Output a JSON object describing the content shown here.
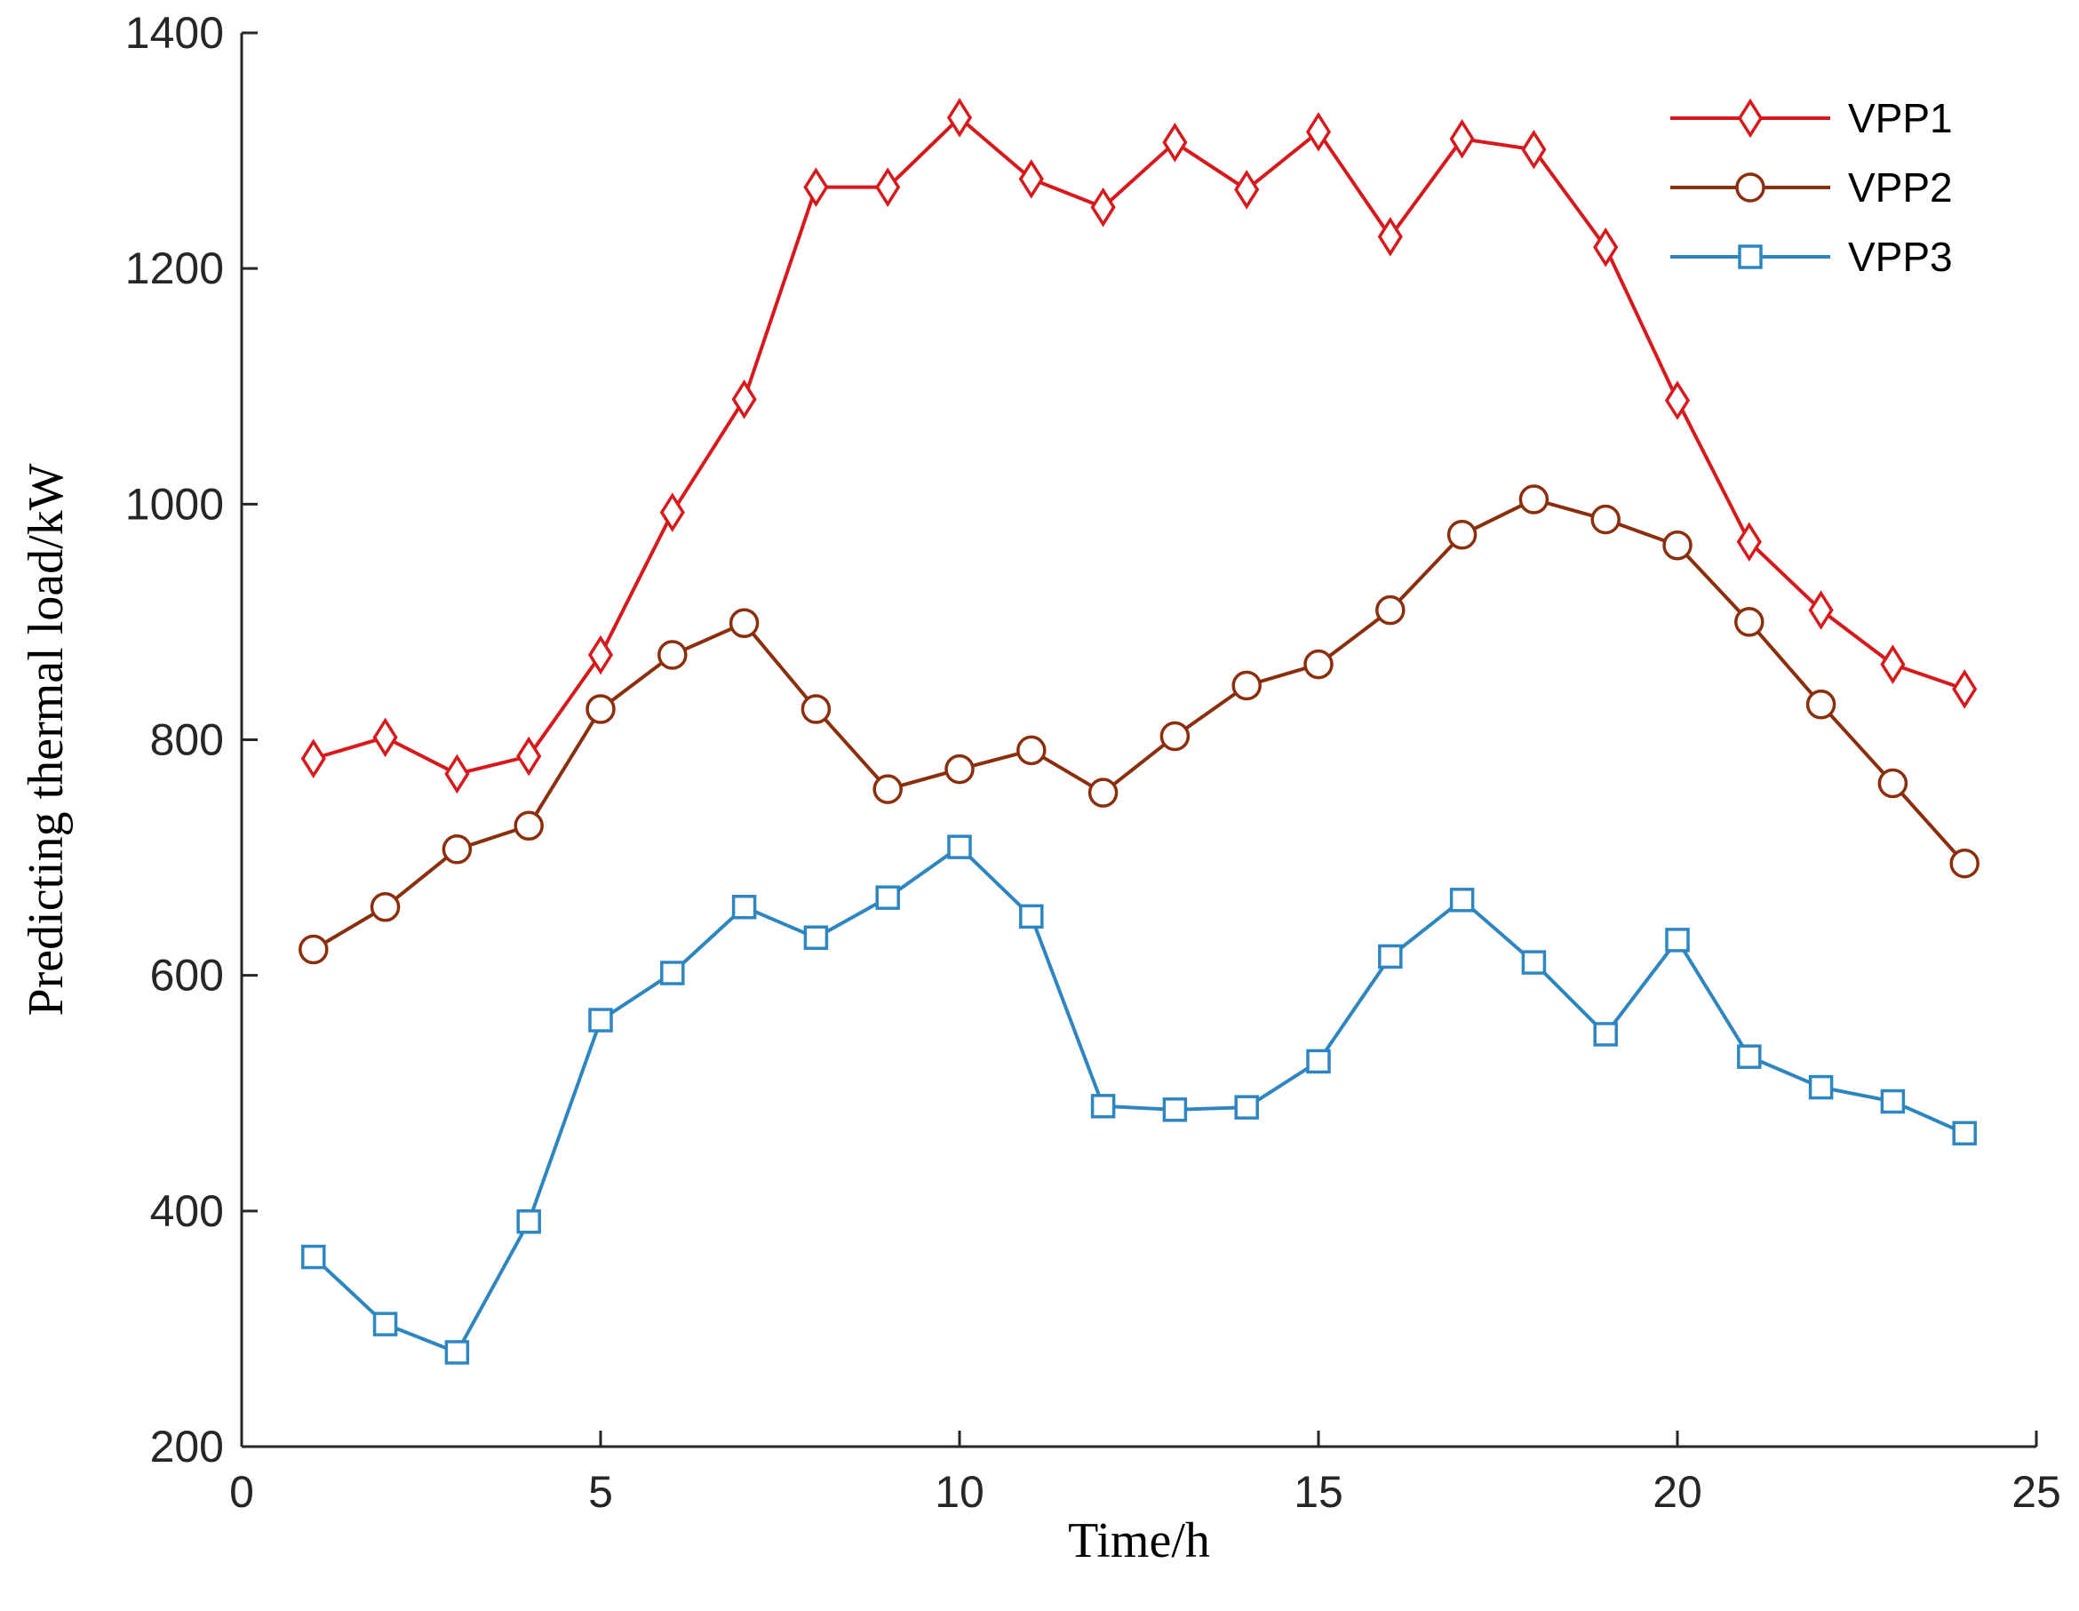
{
  "chart_data": {
    "type": "line",
    "title": "",
    "xlabel": "Time/h",
    "ylabel": "Predicting thermal load/kW",
    "xlim": [
      0,
      25
    ],
    "ylim": [
      200,
      1400
    ],
    "xticks": [
      0,
      5,
      10,
      15,
      20,
      25
    ],
    "yticks": [
      200,
      400,
      600,
      800,
      1000,
      1200,
      1400
    ],
    "grid": false,
    "legend_position": "top-right",
    "x": [
      1,
      2,
      3,
      4,
      5,
      6,
      7,
      8,
      9,
      10,
      11,
      12,
      13,
      14,
      15,
      16,
      17,
      18,
      19,
      20,
      21,
      22,
      23,
      24
    ],
    "series": [
      {
        "name": "VPP1",
        "color": "#D7191C",
        "marker": "diamond",
        "values": [
          784,
          802,
          771,
          786,
          872,
          993,
          1089,
          1269,
          1269,
          1328,
          1276,
          1252,
          1307,
          1267,
          1316,
          1227,
          1310,
          1301,
          1218,
          1088,
          968,
          910,
          864,
          843
        ]
      },
      {
        "name": "VPP2",
        "color": "#8B2E0B",
        "marker": "circle",
        "values": [
          622,
          658,
          707,
          727,
          826,
          872,
          899,
          826,
          758,
          775,
          791,
          755,
          803,
          846,
          864,
          910,
          974,
          1004,
          987,
          965,
          900,
          830,
          763,
          695
        ]
      },
      {
        "name": "VPP3",
        "color": "#2E86C1",
        "marker": "square",
        "values": [
          361,
          304,
          280,
          391,
          562,
          602,
          658,
          632,
          666,
          709,
          650,
          489,
          486,
          488,
          527,
          616,
          664,
          611,
          550,
          630,
          531,
          505,
          493,
          466
        ]
      }
    ]
  }
}
